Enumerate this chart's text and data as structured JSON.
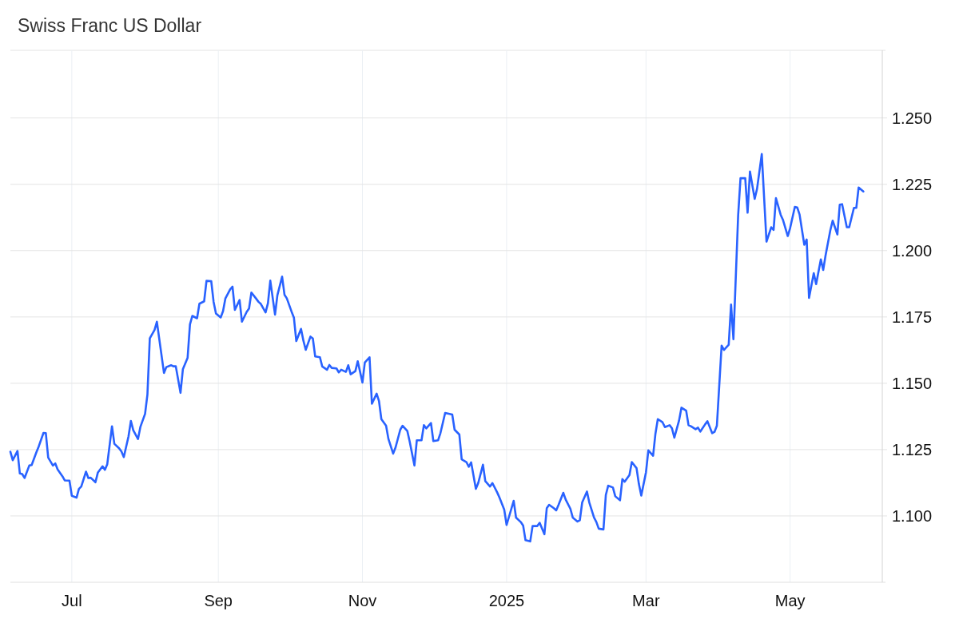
{
  "chart_data": {
    "type": "line",
    "title": "Swiss Franc US Dollar",
    "x": [
      "2024-06-05",
      "2024-06-06",
      "2024-06-08",
      "2024-06-09",
      "2024-06-10",
      "2024-06-11",
      "2024-06-13",
      "2024-06-14",
      "2024-06-16",
      "2024-06-17",
      "2024-06-19",
      "2024-06-20",
      "2024-06-21",
      "2024-06-23",
      "2024-06-24",
      "2024-06-25",
      "2024-06-27",
      "2024-06-28",
      "2024-06-30",
      "2024-07-01",
      "2024-07-03",
      "2024-07-04",
      "2024-07-05",
      "2024-07-07",
      "2024-07-08",
      "2024-07-09",
      "2024-07-11",
      "2024-07-12",
      "2024-07-14",
      "2024-07-15",
      "2024-07-16",
      "2024-07-18",
      "2024-07-19",
      "2024-07-21",
      "2024-07-22",
      "2024-07-23",
      "2024-07-25",
      "2024-07-26",
      "2024-07-27",
      "2024-07-29",
      "2024-07-30",
      "2024-08-01",
      "2024-08-02",
      "2024-08-03",
      "2024-08-05",
      "2024-08-06",
      "2024-08-09",
      "2024-08-10",
      "2024-08-12",
      "2024-08-13",
      "2024-08-14",
      "2024-08-16",
      "2024-08-17",
      "2024-08-19",
      "2024-08-20",
      "2024-08-21",
      "2024-08-23",
      "2024-08-24",
      "2024-08-26",
      "2024-08-27",
      "2024-08-29",
      "2024-08-30",
      "2024-08-31",
      "2024-09-02",
      "2024-09-03",
      "2024-09-04",
      "2024-09-06",
      "2024-09-07",
      "2024-09-08",
      "2024-09-10",
      "2024-09-11",
      "2024-09-13",
      "2024-09-14",
      "2024-09-15",
      "2024-09-17",
      "2024-09-18",
      "2024-09-19",
      "2024-09-21",
      "2024-09-22",
      "2024-09-23",
      "2024-09-25",
      "2024-09-26",
      "2024-09-28",
      "2024-09-29",
      "2024-09-30",
      "2024-10-02",
      "2024-10-03",
      "2024-10-04",
      "2024-10-06",
      "2024-10-07",
      "2024-10-08",
      "2024-10-10",
      "2024-10-11",
      "2024-10-12",
      "2024-10-14",
      "2024-10-15",
      "2024-10-17",
      "2024-10-18",
      "2024-10-19",
      "2024-10-21",
      "2024-10-22",
      "2024-10-23",
      "2024-10-25",
      "2024-10-26",
      "2024-10-27",
      "2024-10-29",
      "2024-10-30",
      "2024-11-01",
      "2024-11-02",
      "2024-11-04",
      "2024-11-05",
      "2024-11-07",
      "2024-11-08",
      "2024-11-09",
      "2024-11-11",
      "2024-11-12",
      "2024-11-14",
      "2024-11-15",
      "2024-11-17",
      "2024-11-18",
      "2024-11-20",
      "2024-11-21",
      "2024-11-23",
      "2024-11-24",
      "2024-11-26",
      "2024-11-27",
      "2024-11-28",
      "2024-11-30",
      "2024-12-01",
      "2024-12-03",
      "2024-12-04",
      "2024-12-06",
      "2024-12-09",
      "2024-12-10",
      "2024-12-12",
      "2024-12-13",
      "2024-12-15",
      "2024-12-16",
      "2024-12-17",
      "2024-12-19",
      "2024-12-20",
      "2024-12-22",
      "2024-12-23",
      "2024-12-25",
      "2024-12-26",
      "2024-12-28",
      "2024-12-29",
      "2024-12-31",
      "2025-01-01",
      "2025-01-04",
      "2025-01-05",
      "2025-01-07",
      "2025-01-08",
      "2025-01-09",
      "2025-01-11",
      "2025-01-12",
      "2025-01-14",
      "2025-01-15",
      "2025-01-17",
      "2025-01-18",
      "2025-01-19",
      "2025-01-21",
      "2025-01-22",
      "2025-01-23",
      "2025-01-25",
      "2025-01-26",
      "2025-01-28",
      "2025-01-29",
      "2025-01-31",
      "2025-02-01",
      "2025-02-02",
      "2025-02-04",
      "2025-02-05",
      "2025-02-07",
      "2025-02-08",
      "2025-02-09",
      "2025-02-11",
      "2025-02-12",
      "2025-02-13",
      "2025-02-15",
      "2025-02-16",
      "2025-02-18",
      "2025-02-19",
      "2025-02-20",
      "2025-02-22",
      "2025-02-23",
      "2025-02-25",
      "2025-02-26",
      "2025-02-27",
      "2025-03-01",
      "2025-03-02",
      "2025-03-04",
      "2025-03-05",
      "2025-03-06",
      "2025-03-08",
      "2025-03-09",
      "2025-03-11",
      "2025-03-12",
      "2025-03-13",
      "2025-03-15",
      "2025-03-16",
      "2025-03-18",
      "2025-03-19",
      "2025-03-20",
      "2025-03-22",
      "2025-03-23",
      "2025-03-24",
      "2025-03-26",
      "2025-03-27",
      "2025-03-29",
      "2025-03-30",
      "2025-03-31",
      "2025-04-02",
      "2025-04-03",
      "2025-04-05",
      "2025-04-06",
      "2025-04-07",
      "2025-04-09",
      "2025-04-10",
      "2025-04-12",
      "2025-04-13",
      "2025-04-14",
      "2025-04-16",
      "2025-04-17",
      "2025-04-19",
      "2025-04-20",
      "2025-04-21",
      "2025-04-23",
      "2025-04-24",
      "2025-04-25",
      "2025-04-27",
      "2025-04-28",
      "2025-04-30",
      "2025-05-01",
      "2025-05-03",
      "2025-05-04",
      "2025-05-05",
      "2025-05-07",
      "2025-05-08",
      "2025-05-09",
      "2025-05-11",
      "2025-05-12",
      "2025-05-14",
      "2025-05-15",
      "2025-05-16",
      "2025-05-18",
      "2025-05-19",
      "2025-05-21",
      "2025-05-22",
      "2025-05-23",
      "2025-05-25",
      "2025-05-26",
      "2025-05-28",
      "2025-05-29",
      "2025-05-30",
      "2025-06-01"
    ],
    "series": [
      {
        "color": "#2962ff",
        "values": [
          1.1242,
          1.121,
          1.1245,
          1.116,
          1.1158,
          1.1143,
          1.119,
          1.1192,
          1.124,
          1.1262,
          1.1313,
          1.1312,
          1.122,
          1.119,
          1.1198,
          1.1175,
          1.115,
          1.1134,
          1.1133,
          1.1076,
          1.1069,
          1.1102,
          1.1111,
          1.1167,
          1.1143,
          1.1144,
          1.1127,
          1.1163,
          1.1187,
          1.1174,
          1.1195,
          1.1338,
          1.1272,
          1.1255,
          1.1243,
          1.1222,
          1.13,
          1.1358,
          1.1323,
          1.129,
          1.1335,
          1.1385,
          1.1458,
          1.1669,
          1.1701,
          1.1732,
          1.1539,
          1.1561,
          1.1568,
          1.1564,
          1.1564,
          1.1464,
          1.1553,
          1.1596,
          1.1722,
          1.1754,
          1.1745,
          1.18,
          1.1809,
          1.1886,
          1.1885,
          1.1807,
          1.1763,
          1.1748,
          1.1772,
          1.182,
          1.1854,
          1.1864,
          1.1777,
          1.1814,
          1.1732,
          1.1769,
          1.1782,
          1.1842,
          1.1819,
          1.1807,
          1.1799,
          1.1767,
          1.1802,
          1.1887,
          1.1759,
          1.1832,
          1.1902,
          1.1834,
          1.182,
          1.177,
          1.1747,
          1.1659,
          1.1705,
          1.1661,
          1.1626,
          1.1676,
          1.1669,
          1.1601,
          1.1598,
          1.1563,
          1.1551,
          1.1569,
          1.1558,
          1.1556,
          1.1541,
          1.1551,
          1.1543,
          1.1568,
          1.1534,
          1.1546,
          1.1583,
          1.1503,
          1.1578,
          1.1598,
          1.1423,
          1.1461,
          1.1433,
          1.1365,
          1.134,
          1.129,
          1.1235,
          1.1258,
          1.1325,
          1.134,
          1.132,
          1.128,
          1.119,
          1.1285,
          1.1285,
          1.1342,
          1.133,
          1.135,
          1.1282,
          1.1285,
          1.1312,
          1.1388,
          1.1382,
          1.1325,
          1.1307,
          1.1213,
          1.1203,
          1.1185,
          1.1202,
          1.1102,
          1.1124,
          1.1193,
          1.1131,
          1.1111,
          1.1124,
          1.1089,
          1.1069,
          1.1024,
          1.0966,
          1.1057,
          1.0994,
          1.0977,
          1.0964,
          1.0909,
          1.0904,
          1.0962,
          1.0962,
          1.0974,
          1.0931,
          1.1029,
          1.1042,
          1.1029,
          1.1021,
          1.1042,
          1.1087,
          1.1062,
          1.1027,
          1.0994,
          1.0979,
          1.0984,
          1.1051,
          1.1092,
          1.1051,
          1.0994,
          1.0977,
          1.0952,
          1.0949,
          1.1079,
          1.1114,
          1.1107,
          1.1074,
          1.1059,
          1.1139,
          1.1129,
          1.1154,
          1.1203,
          1.118,
          1.112,
          1.1077,
          1.1165,
          1.1247,
          1.1227,
          1.131,
          1.1365,
          1.1353,
          1.1335,
          1.1342,
          1.133,
          1.1295,
          1.136,
          1.1408,
          1.1397,
          1.1342,
          1.1338,
          1.1327,
          1.1333,
          1.1318,
          1.1345,
          1.1357,
          1.1312,
          1.1317,
          1.134,
          1.1642,
          1.1626,
          1.1645,
          1.1797,
          1.1666,
          1.2133,
          1.2273,
          1.2273,
          1.2143,
          1.2298,
          1.2195,
          1.2233,
          1.2364,
          1.2198,
          1.2034,
          1.2088,
          1.2078,
          1.2198,
          1.2135,
          1.2115,
          1.2055,
          1.2085,
          1.2165,
          1.2163,
          1.2136,
          1.2022,
          1.2042,
          1.1822,
          1.1915,
          1.1874,
          1.1967,
          1.1927,
          1.1982,
          1.2076,
          1.2113,
          1.2061,
          1.2173,
          1.2175,
          1.2088,
          1.2088,
          1.2161,
          1.2161,
          1.2238,
          1.2223
        ]
      }
    ],
    "xlim": [
      "2024-06-05",
      "2025-06-09"
    ],
    "xticks": [
      {
        "value": "2024-07-01",
        "label": "Jul"
      },
      {
        "value": "2024-09-01",
        "label": "Sep"
      },
      {
        "value": "2024-11-01",
        "label": "Nov"
      },
      {
        "value": "2025-01-01",
        "label": "2025"
      },
      {
        "value": "2025-03-01",
        "label": "Mar"
      },
      {
        "value": "2025-05-01",
        "label": "May"
      }
    ],
    "ylim": [
      1.075,
      1.2755
    ],
    "yticks": [
      {
        "value": 1.1,
        "label": "1.100"
      },
      {
        "value": 1.125,
        "label": "1.125"
      },
      {
        "value": 1.15,
        "label": "1.150"
      },
      {
        "value": 1.175,
        "label": "1.175"
      },
      {
        "value": 1.2,
        "label": "1.200"
      },
      {
        "value": 1.225,
        "label": "1.225"
      },
      {
        "value": 1.25,
        "label": "1.250"
      }
    ],
    "grid": true
  }
}
